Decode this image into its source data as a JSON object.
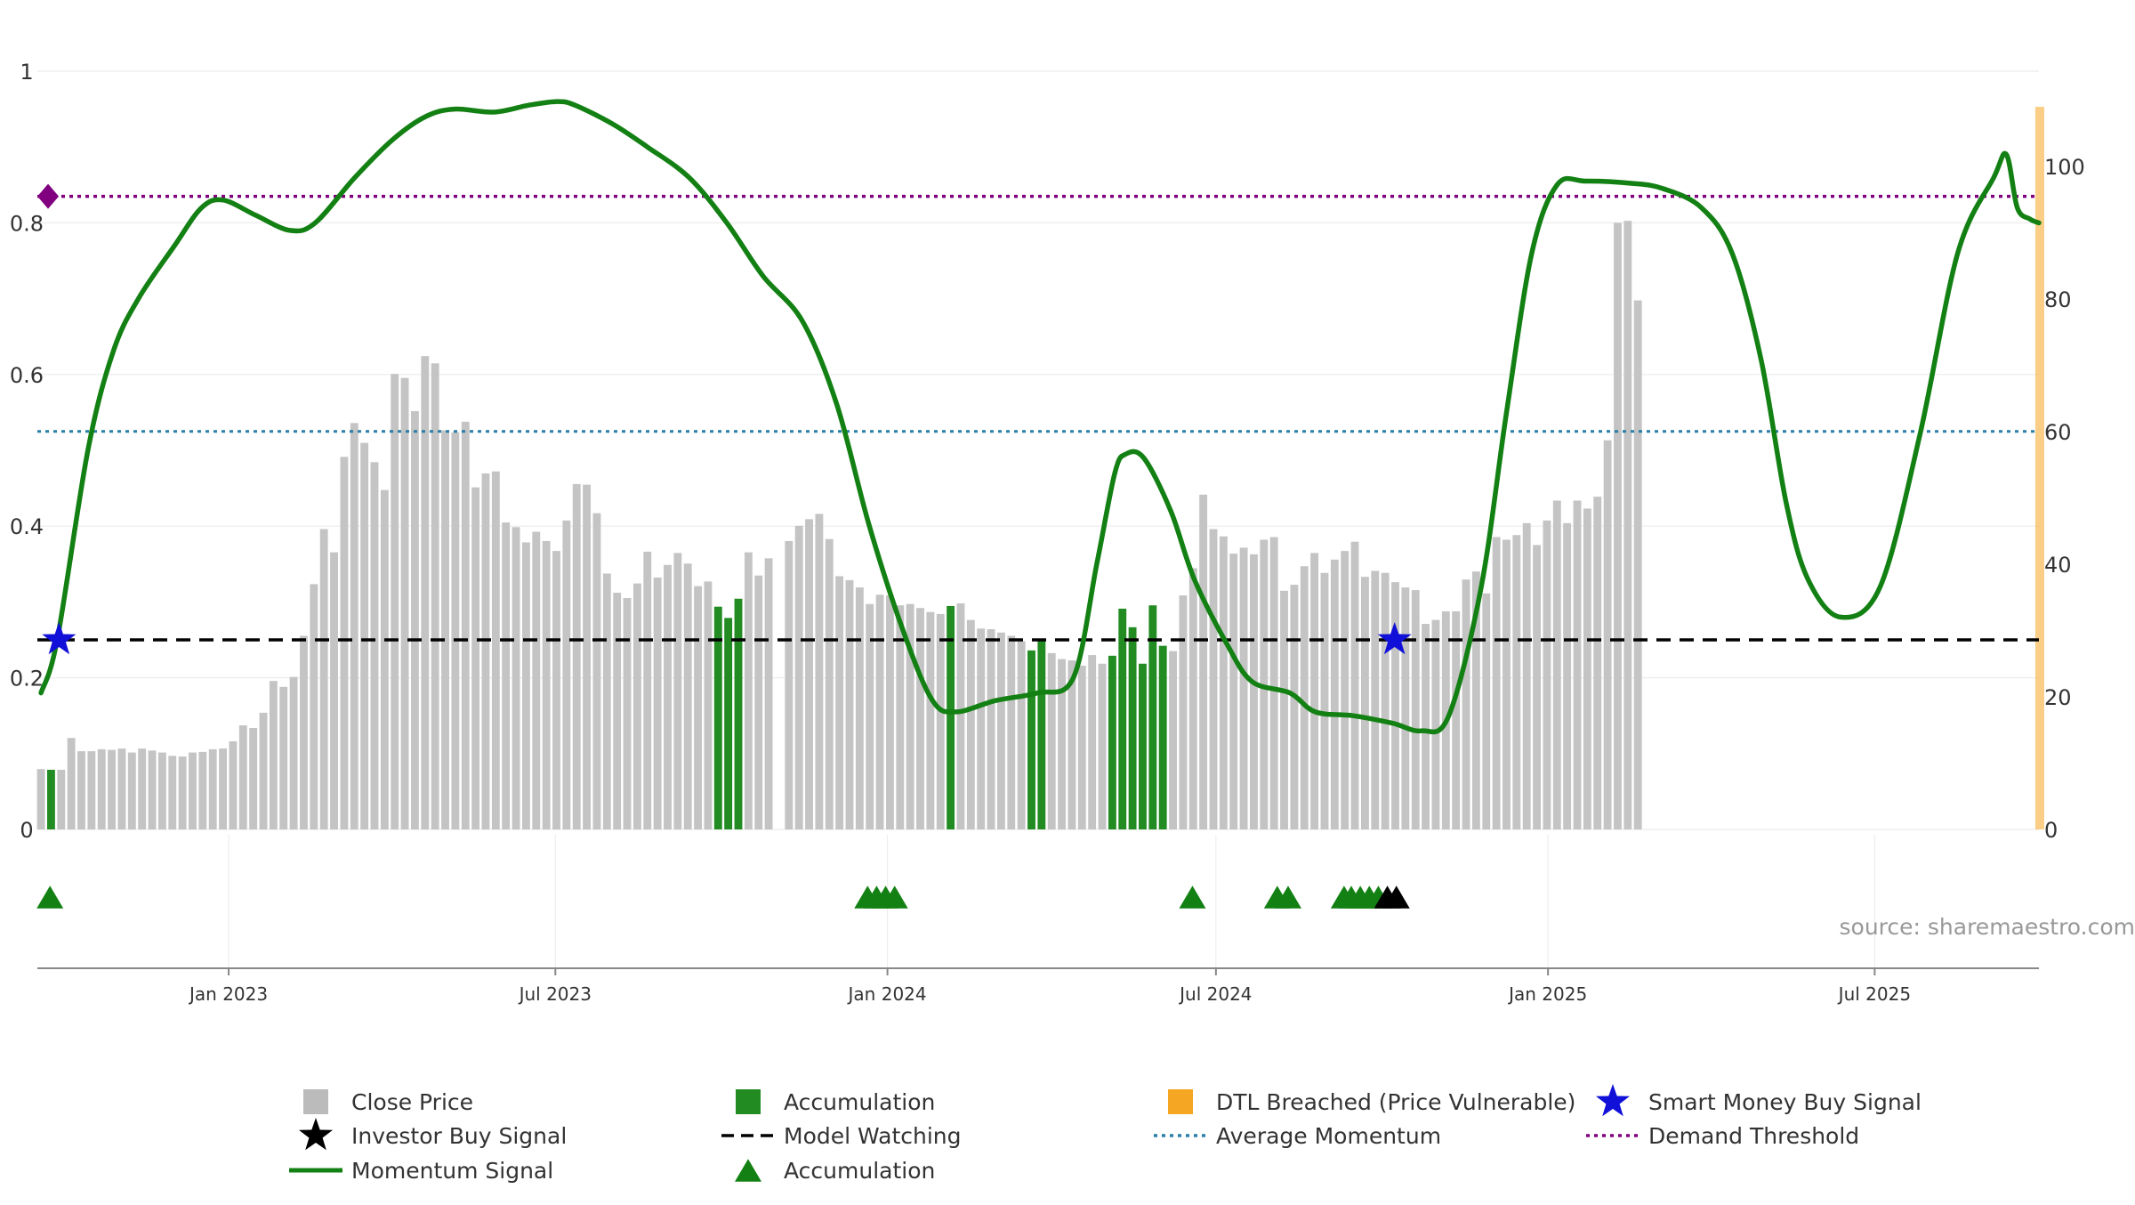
{
  "chart_data": {
    "type": "bar",
    "source_note": "source: sharemaestro.com",
    "left_axis": {
      "ylim": [
        0,
        1
      ],
      "ticks": [
        "0",
        "0.2",
        "0.4",
        "0.6",
        "0.8",
        "1"
      ]
    },
    "right_axis": {
      "ylim": [
        0,
        109
      ],
      "ticks": [
        "0",
        "20",
        "40",
        "60",
        "80",
        "100"
      ]
    },
    "x_axis": {
      "tick_labels": [
        "Jan 2023",
        "Jul 2023",
        "Jan 2024",
        "Jul 2024",
        "Jan 2025",
        "Jul 2025"
      ],
      "tick_dates": [
        "2023-01-01",
        "2023-07-01",
        "2024-01-01",
        "2024-07-01",
        "2025-01-01",
        "2025-07-01"
      ],
      "range": [
        "2022-09-17",
        "2025-09-30"
      ]
    },
    "reference_lines": {
      "model_watching": 0.25,
      "average_momentum": 0.525,
      "demand_threshold": 0.835
    },
    "close_price": {
      "name": "Close Price",
      "start_date": "2022-09-19",
      "step_days": 5.6,
      "values": [
        9.1,
        9.0,
        9.0,
        13.8,
        11.8,
        11.8,
        12.1,
        12.0,
        12.2,
        11.6,
        12.2,
        11.9,
        11.6,
        11.1,
        11.0,
        11.6,
        11.7,
        12.1,
        12.2,
        13.3,
        15.7,
        15.3,
        17.6,
        22.4,
        21.5,
        23.0,
        29.2,
        37.0,
        45.3,
        41.8,
        56.2,
        61.3,
        58.3,
        55.4,
        51.2,
        68.7,
        68.1,
        63.1,
        71.4,
        70.3,
        60.2,
        59.9,
        61.5,
        51.6,
        53.7,
        54.0,
        46.3,
        45.6,
        43.3,
        44.9,
        43.5,
        42.0,
        46.6,
        52.1,
        52.0,
        47.7,
        38.6,
        35.7,
        34.9,
        37.1,
        41.9,
        38.0,
        39.9,
        41.7,
        40.1,
        36.7,
        37.4,
        33.6,
        31.9,
        34.8,
        41.8,
        38.3,
        40.9,
        0,
        43.5,
        45.8,
        46.8,
        47.6,
        43.8,
        38.2,
        37.6,
        36.5,
        34.0,
        35.4,
        35.3,
        33.8,
        34.0,
        33.4,
        32.8,
        32.5,
        33.7,
        34.1,
        31.6,
        30.3,
        30.2,
        29.7,
        29.2,
        28.4,
        27.0,
        28.4,
        26.6,
        25.7,
        25.5,
        24.7,
        26.3,
        25.0,
        26.2,
        33.3,
        30.5,
        25.0,
        33.8,
        27.7,
        26.9,
        35.3,
        39.4,
        50.5,
        45.3,
        44.2,
        41.6,
        42.5,
        41.5,
        43.7,
        44.1,
        36.0,
        36.9,
        39.7,
        41.7,
        38.7,
        40.7,
        42.0,
        43.4,
        38.1,
        39.0,
        38.7,
        37.3,
        36.5,
        36.1,
        31.0,
        31.6,
        32.9,
        32.9,
        37.7,
        38.9,
        35.6,
        44.1,
        43.7,
        44.4,
        46.2,
        42.9,
        46.6,
        49.6,
        46.2,
        49.6,
        48.4,
        50.2,
        58.7,
        91.5,
        91.8,
        79.8
      ],
      "accumulation_indices": [
        1,
        67,
        68,
        69,
        90,
        98,
        99,
        106,
        107,
        108,
        109,
        110,
        111
      ]
    },
    "momentum": {
      "name": "Momentum Signal",
      "values": [
        [
          "2022-09-19",
          0.18
        ],
        [
          "2022-09-28",
          0.25
        ],
        [
          "2022-10-15",
          0.5
        ],
        [
          "2022-10-29",
          0.63
        ],
        [
          "2022-11-12",
          0.7
        ],
        [
          "2022-12-02",
          0.77
        ],
        [
          "2022-12-17",
          0.82
        ],
        [
          "2022-12-29",
          0.83
        ],
        [
          "2023-01-16",
          0.81
        ],
        [
          "2023-02-04",
          0.79
        ],
        [
          "2023-02-18",
          0.8
        ],
        [
          "2023-03-12",
          0.86
        ],
        [
          "2023-04-02",
          0.91
        ],
        [
          "2023-04-20",
          0.94
        ],
        [
          "2023-05-06",
          0.95
        ],
        [
          "2023-05-28",
          0.946
        ],
        [
          "2023-06-16",
          0.955
        ],
        [
          "2023-07-02",
          0.96
        ],
        [
          "2023-07-12",
          0.955
        ],
        [
          "2023-08-02",
          0.93
        ],
        [
          "2023-08-21",
          0.9
        ],
        [
          "2023-09-13",
          0.86
        ],
        [
          "2023-10-04",
          0.8
        ],
        [
          "2023-10-24",
          0.73
        ],
        [
          "2023-11-15",
          0.67
        ],
        [
          "2023-12-04",
          0.56
        ],
        [
          "2023-12-22",
          0.4
        ],
        [
          "2024-01-10",
          0.26
        ],
        [
          "2024-01-26",
          0.17
        ],
        [
          "2024-02-08",
          0.155
        ],
        [
          "2024-03-01",
          0.17
        ],
        [
          "2024-03-24",
          0.18
        ],
        [
          "2024-04-13",
          0.2
        ],
        [
          "2024-04-26",
          0.35
        ],
        [
          "2024-05-06",
          0.47
        ],
        [
          "2024-05-12",
          0.495
        ],
        [
          "2024-05-22",
          0.49
        ],
        [
          "2024-06-06",
          0.42
        ],
        [
          "2024-06-19",
          0.33
        ],
        [
          "2024-07-07",
          0.245
        ],
        [
          "2024-07-21",
          0.195
        ],
        [
          "2024-08-11",
          0.18
        ],
        [
          "2024-08-25",
          0.155
        ],
        [
          "2024-09-15",
          0.15
        ],
        [
          "2024-10-07",
          0.14
        ],
        [
          "2024-10-23",
          0.13
        ],
        [
          "2024-11-07",
          0.15
        ],
        [
          "2024-11-25",
          0.32
        ],
        [
          "2024-12-09",
          0.55
        ],
        [
          "2024-12-23",
          0.76
        ],
        [
          "2025-01-06",
          0.85
        ],
        [
          "2025-01-22",
          0.855
        ],
        [
          "2025-02-17",
          0.852
        ],
        [
          "2025-03-06",
          0.845
        ],
        [
          "2025-03-27",
          0.82
        ],
        [
          "2025-04-13",
          0.76
        ],
        [
          "2025-04-29",
          0.62
        ],
        [
          "2025-05-13",
          0.43
        ],
        [
          "2025-05-25",
          0.33
        ],
        [
          "2025-06-12",
          0.28
        ],
        [
          "2025-07-04",
          0.32
        ],
        [
          "2025-07-26",
          0.52
        ],
        [
          "2025-08-16",
          0.76
        ],
        [
          "2025-09-05",
          0.86
        ],
        [
          "2025-09-12",
          0.89
        ],
        [
          "2025-09-18",
          0.82
        ],
        [
          "2025-09-25",
          0.805
        ],
        [
          "2025-09-30",
          0.8
        ]
      ]
    },
    "markers": {
      "accumulation_triangles": [
        "2022-09-24",
        "2023-12-21",
        "2023-12-26",
        "2023-12-31",
        "2024-01-05",
        "2024-06-18",
        "2024-08-04",
        "2024-08-10",
        "2024-09-10",
        "2024-09-14",
        "2024-09-19",
        "2024-09-24",
        "2024-09-29"
      ],
      "investor_buy_triangles": [
        "2024-10-04",
        "2024-10-09"
      ],
      "smart_money_stars": [
        {
          "date": "2022-09-29",
          "value": 0.25
        },
        {
          "date": "2024-10-08",
          "value": 0.25
        }
      ],
      "demand_diamond": {
        "date": "2022-09-19",
        "value": 0.835
      }
    },
    "dtl_band": {
      "from": "2025-09-28",
      "to": "2025-09-30",
      "top": 109
    },
    "legend": [
      {
        "id": "close",
        "label": "Close Price",
        "symbol": "grey-square",
        "color": "#bbbbbb"
      },
      {
        "id": "accum-bar",
        "label": "Accumulation",
        "symbol": "green-square",
        "color": "#228b22"
      },
      {
        "id": "dtl",
        "label": "DTL Breached (Price Vulnerable)",
        "symbol": "orange-square",
        "color": "#f5a623"
      },
      {
        "id": "smart",
        "label": "Smart Money Buy Signal",
        "symbol": "blue-star",
        "color": "#1010d8"
      },
      {
        "id": "investor",
        "label": "Investor Buy Signal",
        "symbol": "black-star",
        "color": "#000000"
      },
      {
        "id": "model",
        "label": "Model Watching",
        "symbol": "black-dash",
        "color": "#000000"
      },
      {
        "id": "avgmom",
        "label": "Average Momentum",
        "symbol": "blue-dot",
        "color": "#2a7fa8"
      },
      {
        "id": "demand",
        "label": "Demand Threshold",
        "symbol": "purple-dot",
        "color": "#800080"
      },
      {
        "id": "momentum",
        "label": "Momentum Signal",
        "symbol": "green-line",
        "color": "#138013"
      },
      {
        "id": "accum-tri",
        "label": "Accumulation",
        "symbol": "green-triangle",
        "color": "#138013"
      }
    ]
  }
}
